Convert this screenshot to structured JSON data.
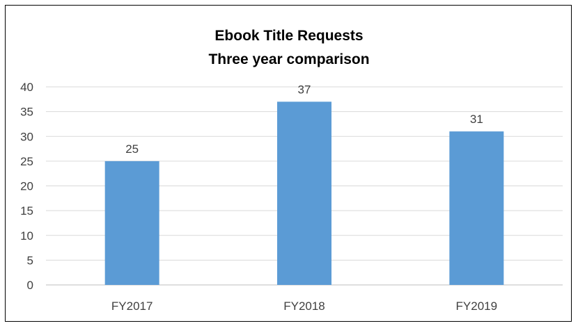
{
  "chart_data": {
    "type": "bar",
    "title": "Ebook Title Requests",
    "subtitle": "Three year comparison",
    "categories": [
      "FY2017",
      "FY2018",
      "FY2019"
    ],
    "values": [
      25,
      37,
      31
    ],
    "data_labels": [
      "25",
      "37",
      "31"
    ],
    "ylim": [
      0,
      40
    ],
    "y_ticks": [
      0,
      5,
      10,
      15,
      20,
      25,
      30,
      35,
      40
    ],
    "grid": true,
    "legend": "none",
    "bar_color": "#5B9BD5",
    "grid_color": "#D9D9D9"
  }
}
